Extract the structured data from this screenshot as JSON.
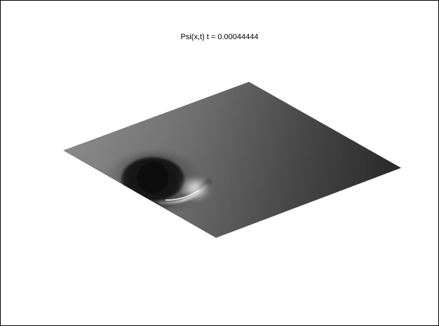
{
  "figure": {
    "title": "Psi(x,t)  t = 0.00044444"
  },
  "surface": {
    "colormap": "gray",
    "shading": "interp",
    "colors": {
      "background": "#ffffff",
      "frame": "#000000",
      "light_edge": "#9a9a9a",
      "dark_edge": "#2e2e2e",
      "well_core": "#101010",
      "highlight": "#ffffff"
    }
  }
}
